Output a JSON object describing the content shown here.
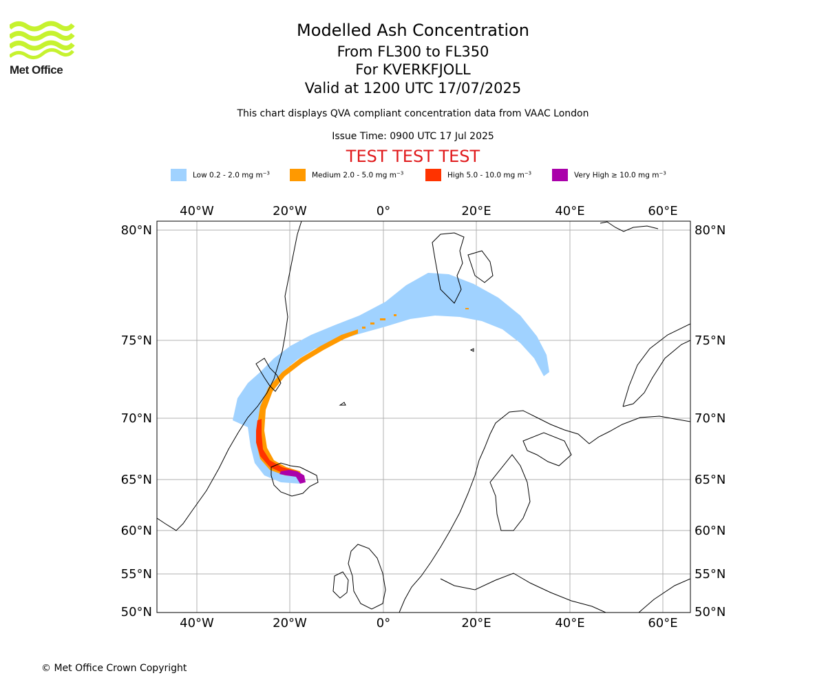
{
  "logo": {
    "text": "Met Office",
    "color": "#c6f22f"
  },
  "header": {
    "title": "Modelled Ash Concentration",
    "flight_levels": "From FL300 to FL350",
    "volcano": "For KVERKFJOLL",
    "valid_time": "Valid at 1200 UTC 17/07/2025",
    "note": "This chart displays QVA compliant concentration data from VAAC London",
    "issue_time": "Issue Time: 0900 UTC 17 Jul 2025",
    "test_banner": "TEST TEST TEST"
  },
  "legend": [
    {
      "label": "Low 0.2 - 2.0 mg m",
      "color": "#a0d2ff"
    },
    {
      "label": "Medium 2.0 - 5.0 mg m",
      "color": "#ff9900"
    },
    {
      "label": "High 5.0 - 10.0 mg m",
      "color": "#ff3300"
    },
    {
      "label": "Very High ≥ 10.0 mg m",
      "color": "#aa00aa"
    }
  ],
  "legend_unit_exponent": "−3",
  "map": {
    "lon_labels": [
      "40°W",
      "20°W",
      "0°",
      "20°E",
      "40°E",
      "60°E"
    ],
    "lat_labels": [
      "80°N",
      "75°N",
      "70°N",
      "65°N",
      "60°N",
      "55°N",
      "50°N"
    ]
  },
  "copyright": "© Met Office Crown Copyright"
}
